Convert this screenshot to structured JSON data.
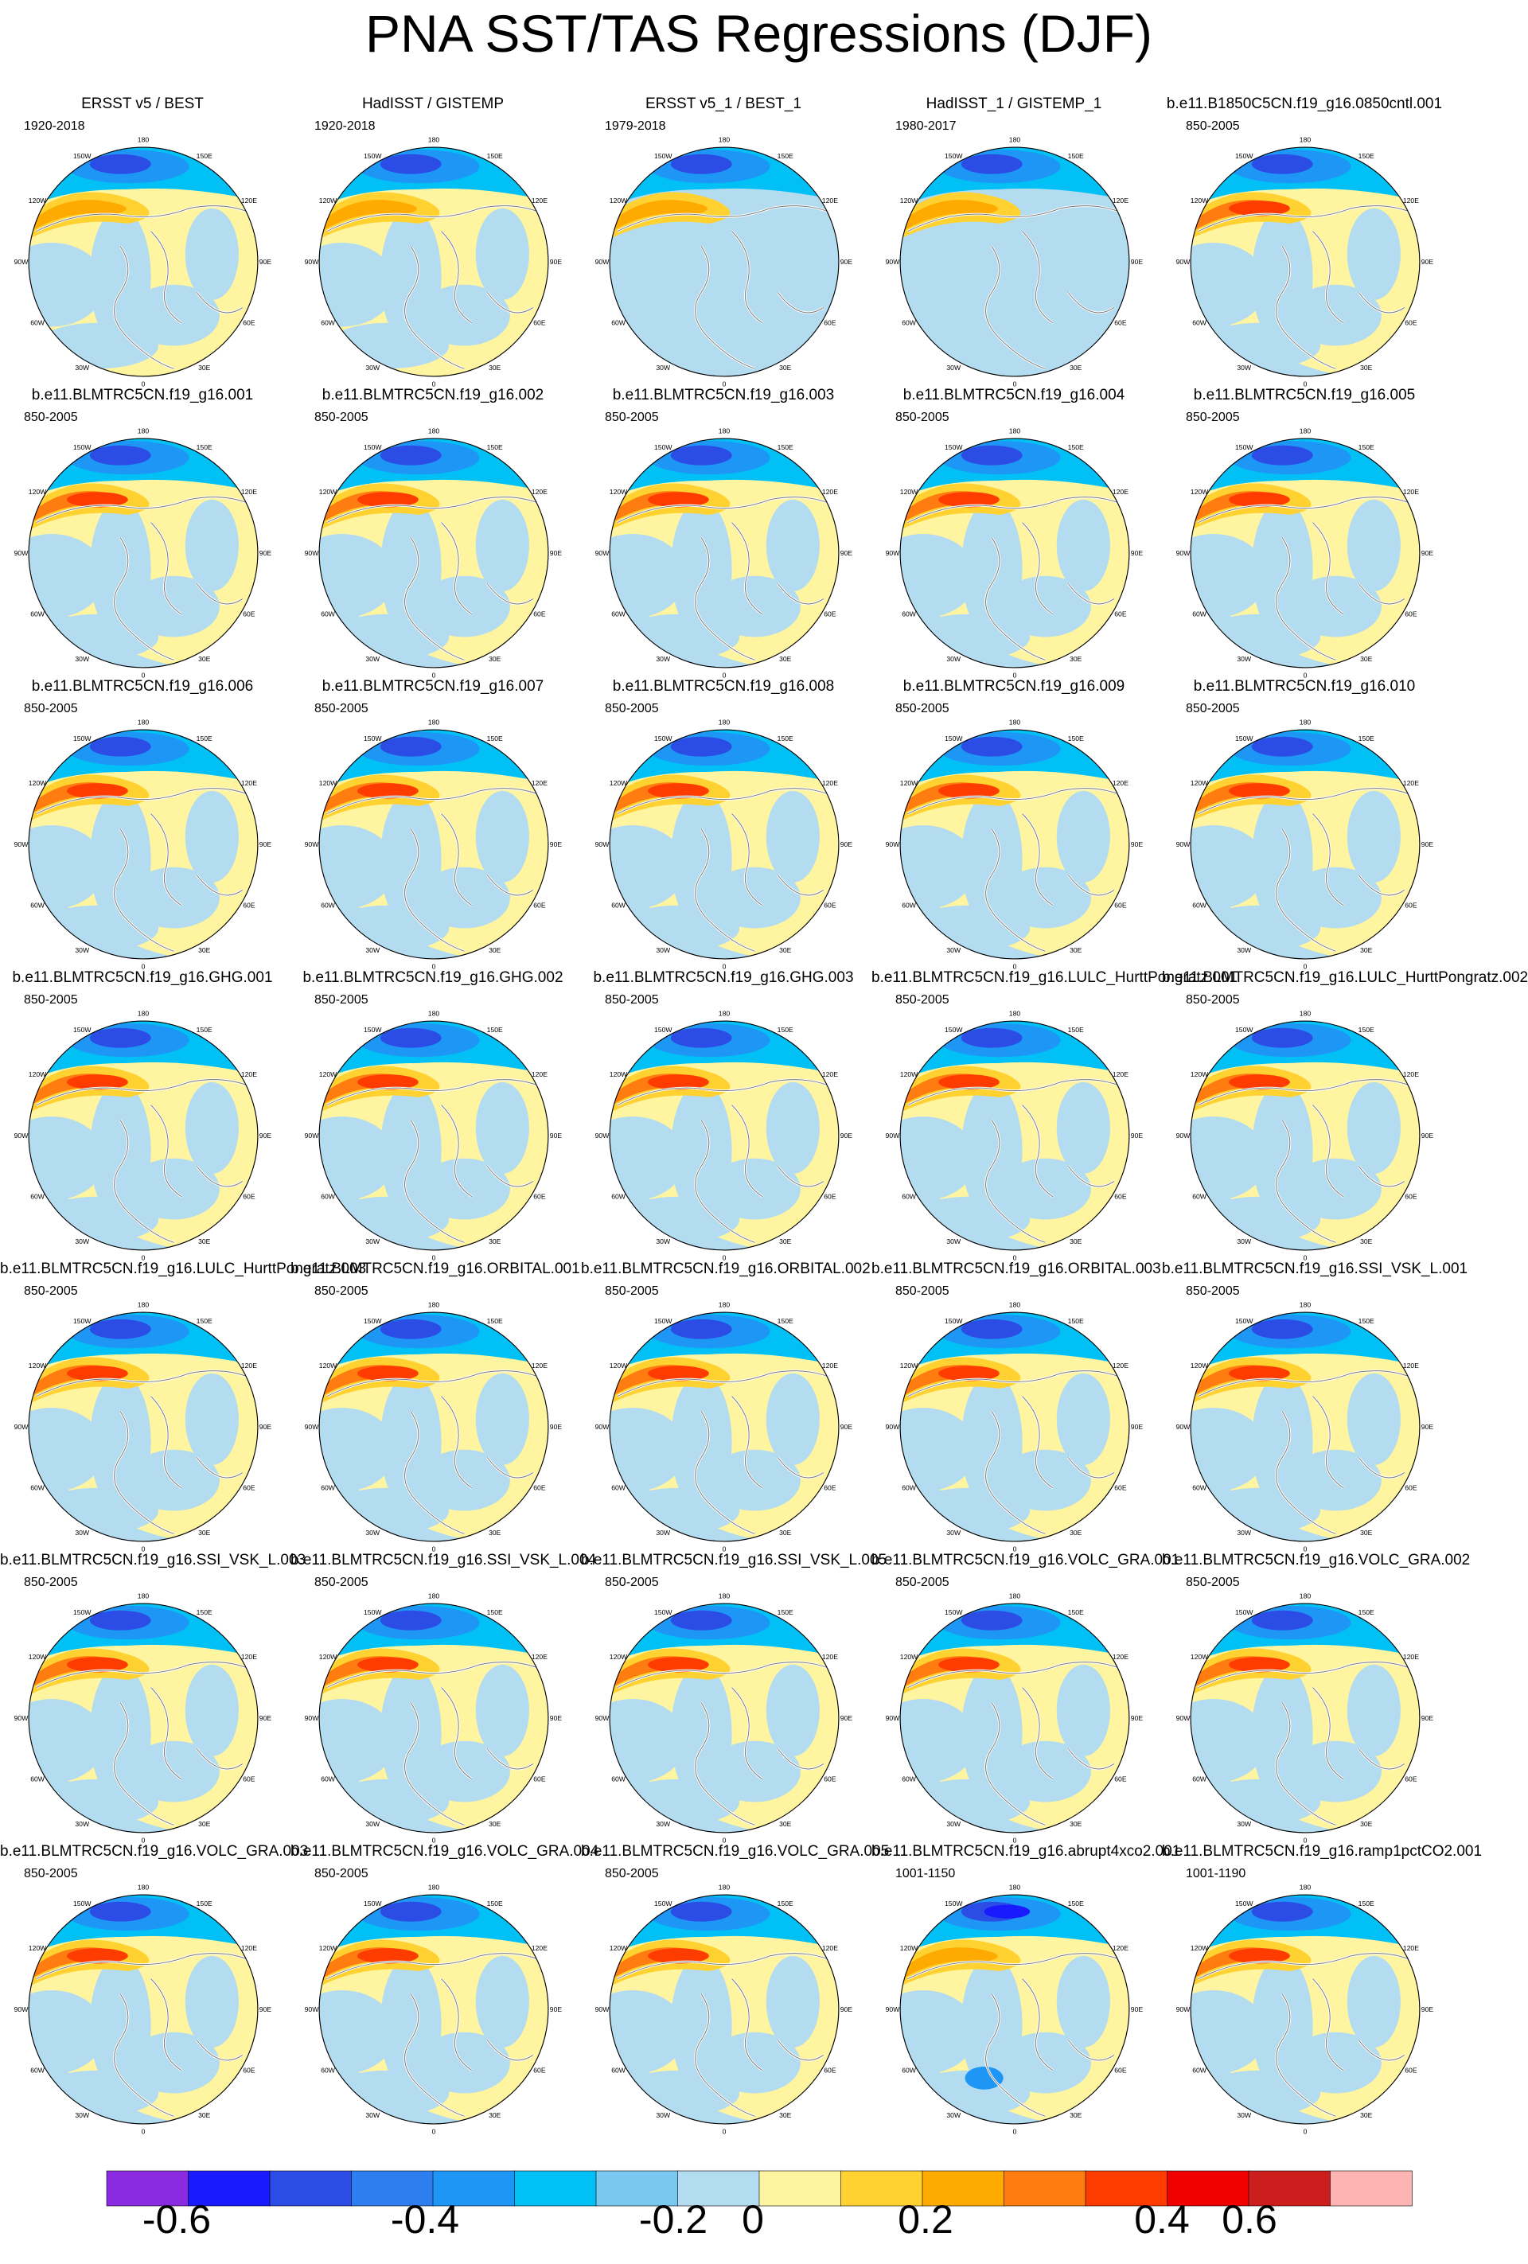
{
  "title": "PNA SST/TAS Regressions (DJF)",
  "panels": [
    {
      "title": "ERSST v5 / BEST",
      "period": "1920-2018",
      "style": "obs1"
    },
    {
      "title": "HadISST / GISTEMP",
      "period": "1920-2018",
      "style": "obs2"
    },
    {
      "title": "ERSST v5_1 / BEST_1",
      "period": "1979-2018",
      "style": "obs3"
    },
    {
      "title": "HadISST_1 / GISTEMP_1",
      "period": "1980-2017",
      "style": "obs4"
    },
    {
      "title": "b.e11.B1850C5CN.f19_g16.0850cntl.001",
      "period": "850-2005",
      "style": "model"
    },
    {
      "title": "b.e11.BLMTRC5CN.f19_g16.001",
      "period": "850-2005",
      "style": "model"
    },
    {
      "title": "b.e11.BLMTRC5CN.f19_g16.002",
      "period": "850-2005",
      "style": "model"
    },
    {
      "title": "b.e11.BLMTRC5CN.f19_g16.003",
      "period": "850-2005",
      "style": "model"
    },
    {
      "title": "b.e11.BLMTRC5CN.f19_g16.004",
      "period": "850-2005",
      "style": "model"
    },
    {
      "title": "b.e11.BLMTRC5CN.f19_g16.005",
      "period": "850-2005",
      "style": "model"
    },
    {
      "title": "b.e11.BLMTRC5CN.f19_g16.006",
      "period": "850-2005",
      "style": "model"
    },
    {
      "title": "b.e11.BLMTRC5CN.f19_g16.007",
      "period": "850-2005",
      "style": "model"
    },
    {
      "title": "b.e11.BLMTRC5CN.f19_g16.008",
      "period": "850-2005",
      "style": "model"
    },
    {
      "title": "b.e11.BLMTRC5CN.f19_g16.009",
      "period": "850-2005",
      "style": "model"
    },
    {
      "title": "b.e11.BLMTRC5CN.f19_g16.010",
      "period": "850-2005",
      "style": "model"
    },
    {
      "title": "b.e11.BLMTRC5CN.f19_g16.GHG.001",
      "period": "850-2005",
      "style": "model"
    },
    {
      "title": "b.e11.BLMTRC5CN.f19_g16.GHG.002",
      "period": "850-2005",
      "style": "model"
    },
    {
      "title": "b.e11.BLMTRC5CN.f19_g16.GHG.003",
      "period": "850-2005",
      "style": "model"
    },
    {
      "title": "b.e11.BLMTRC5CN.f19_g16.LULC_HurttPongratz.001",
      "period": "850-2005",
      "style": "model"
    },
    {
      "title": "b.e11.BLMTRC5CN.f19_g16.LULC_HurttPongratz.002",
      "period": "850-2005",
      "style": "model"
    },
    {
      "title": "b.e11.BLMTRC5CN.f19_g16.LULC_HurttPongratz.003",
      "period": "850-2005",
      "style": "model"
    },
    {
      "title": "b.e11.BLMTRC5CN.f19_g16.ORBITAL.001",
      "period": "850-2005",
      "style": "model"
    },
    {
      "title": "b.e11.BLMTRC5CN.f19_g16.ORBITAL.002",
      "period": "850-2005",
      "style": "model"
    },
    {
      "title": "b.e11.BLMTRC5CN.f19_g16.ORBITAL.003",
      "period": "850-2005",
      "style": "model"
    },
    {
      "title": "b.e11.BLMTRC5CN.f19_g16.SSI_VSK_L.001",
      "period": "850-2005",
      "style": "model"
    },
    {
      "title": "b.e11.BLMTRC5CN.f19_g16.SSI_VSK_L.003",
      "period": "850-2005",
      "style": "model"
    },
    {
      "title": "b.e11.BLMTRC5CN.f19_g16.SSI_VSK_L.004",
      "period": "850-2005",
      "style": "model"
    },
    {
      "title": "b.e11.BLMTRC5CN.f19_g16.SSI_VSK_L.005",
      "period": "850-2005",
      "style": "model"
    },
    {
      "title": "b.e11.BLMTRC5CN.f19_g16.VOLC_GRA.001",
      "period": "850-2005",
      "style": "model"
    },
    {
      "title": "b.e11.BLMTRC5CN.f19_g16.VOLC_GRA.002",
      "period": "850-2005",
      "style": "model"
    },
    {
      "title": "b.e11.BLMTRC5CN.f19_g16.VOLC_GRA.003",
      "period": "850-2005",
      "style": "model"
    },
    {
      "title": "b.e11.BLMTRC5CN.f19_g16.VOLC_GRA.004",
      "period": "850-2005",
      "style": "model"
    },
    {
      "title": "b.e11.BLMTRC5CN.f19_g16.VOLC_GRA.005",
      "period": "850-2005",
      "style": "model"
    },
    {
      "title": "b.e11.BLMTRC5CN.f19_g16.abrupt4xco2.001",
      "period": "1001-1150",
      "style": "abrupt"
    },
    {
      "title": "b.e11.BLMTRC5CN.f19_g16.ramp1pctCO2.001",
      "period": "1001-1190",
      "style": "ramp"
    }
  ],
  "map_labels": {
    "lon_180": "180",
    "lon_150w": "150W",
    "lon_150e": "150E",
    "lon_120w": "120W",
    "lon_120e": "120E",
    "lon_90w": "90W",
    "lon_90e": "90E",
    "lon_60w": "60W",
    "lon_60e": "60E",
    "lon_30w": "30W",
    "lon_30e": "30E",
    "lon_0": "0"
  },
  "colorbar": {
    "colors": [
      "#8a2be2",
      "#1a1aff",
      "#2c4ce6",
      "#2f7ef0",
      "#1e96f5",
      "#00c0f5",
      "#78c8f0",
      "#b4dcf0",
      "#fff5a0",
      "#ffd232",
      "#ffaa00",
      "#ff7d10",
      "#ff3c00",
      "#f00000",
      "#cd1e1e",
      "#ffb4b4"
    ],
    "tick_labels": [
      "-0.6",
      "-0.4",
      "-0.2",
      "0",
      "0.2",
      "0.4",
      "0.6"
    ],
    "tick_boundary_index": [
      2,
      5,
      8,
      8,
      11,
      14,
      17
    ]
  },
  "palette": {
    "deep_blue": "#2c4ce6",
    "mid_blue": "#1e96f5",
    "cyan": "#00c0f5",
    "light_blue": "#b4dcf0",
    "pale_blue": "#78c8f0",
    "yellow": "#fff5a0",
    "gold": "#ffd232",
    "orange": "#ffaa00",
    "dark_orange": "#ff7d10",
    "red": "#ff3c00",
    "violet": "#1a1aff"
  }
}
